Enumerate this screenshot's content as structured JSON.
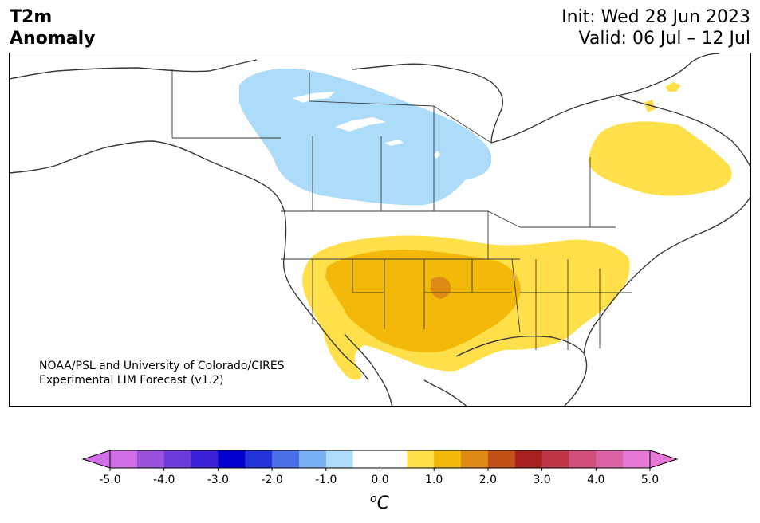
{
  "header": {
    "title_line1": "T2m",
    "title_line2": "Anomaly",
    "init_text": "Init: Wed 28 Jun 2023",
    "valid_text": "Valid: 06 Jul – 12 Jul"
  },
  "map": {
    "credit_line1": "NOAA/PSL and University of Colorado/CIRES",
    "credit_line2": "Experimental LIM Forecast (v1.2)",
    "anomaly_colors": {
      "cool_light": "#ADDCFA",
      "warm_1": "#FFE04A",
      "warm_2": "#F2B80A",
      "warm_3": "#DE8A14",
      "coastline": "#3a3a3a"
    }
  },
  "colorbar": {
    "unit": "°C",
    "unit_base": "C",
    "unit_super": "o",
    "tick_labels": [
      "-5.0",
      "-4.0",
      "-3.0",
      "-2.0",
      "-1.0",
      "0.0",
      "1.0",
      "2.0",
      "3.0",
      "4.0",
      "5.0"
    ],
    "colors": [
      "#D170E6",
      "#9A52DC",
      "#6C3BDB",
      "#3A20D6",
      "#0000D0",
      "#2434DB",
      "#4A6FE6",
      "#76AEF0",
      "#ADDCFA",
      "#FFFFFF",
      "#FFFFFF",
      "#FFE04A",
      "#F2B80A",
      "#DE8A14",
      "#C45118",
      "#A82220",
      "#BF3547",
      "#D14E7A",
      "#DC62A6",
      "#E678D6"
    ],
    "extend_low_color": "#D170E6",
    "extend_high_color": "#E678D6"
  }
}
